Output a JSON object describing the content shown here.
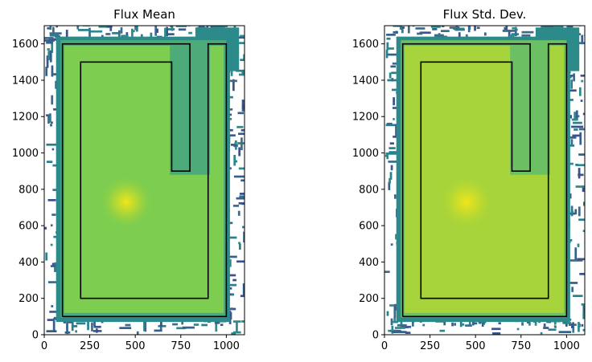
{
  "chart_data": [
    {
      "type": "heatmap",
      "title": "Flux Mean",
      "xlabel": "",
      "ylabel": "",
      "xlim": [
        0,
        1100
      ],
      "ylim": [
        0,
        1700
      ],
      "xticks": [
        0,
        250,
        500,
        750,
        1000
      ],
      "yticks": [
        0,
        200,
        400,
        600,
        800,
        1000,
        1200,
        1400,
        1600
      ],
      "colormap": "viridis",
      "source_point": [
        450,
        730
      ],
      "outer_boundary": [
        [
          100,
          100
        ],
        [
          1000,
          100
        ],
        [
          1000,
          1600
        ],
        [
          900,
          1600
        ],
        [
          900,
          200
        ],
        [
          200,
          200
        ],
        [
          200,
          1500
        ],
        [
          700,
          1500
        ],
        [
          700,
          900
        ],
        [
          800,
          900
        ],
        [
          800,
          1600
        ],
        [
          100,
          1600
        ],
        [
          100,
          100
        ]
      ],
      "notes": "empty bins shown in white"
    },
    {
      "type": "heatmap",
      "title": "Flux Std. Dev.",
      "xlabel": "",
      "ylabel": "",
      "xlim": [
        0,
        1100
      ],
      "ylim": [
        0,
        1700
      ],
      "xticks": [
        0,
        250,
        500,
        750,
        1000
      ],
      "yticks": [
        0,
        200,
        400,
        600,
        800,
        1000,
        1200,
        1400,
        1600
      ],
      "colormap": "viridis",
      "source_point": [
        450,
        730
      ],
      "outer_boundary": [
        [
          100,
          100
        ],
        [
          1000,
          100
        ],
        [
          1000,
          1600
        ],
        [
          900,
          1600
        ],
        [
          900,
          200
        ],
        [
          200,
          200
        ],
        [
          200,
          1500
        ],
        [
          700,
          1500
        ],
        [
          700,
          900
        ],
        [
          800,
          900
        ],
        [
          800,
          1600
        ],
        [
          100,
          1600
        ],
        [
          100,
          100
        ]
      ],
      "notes": "empty bins shown in white"
    }
  ],
  "colors": {
    "interior_mean": "#7ccd50",
    "interior_std": "#a6d43a",
    "edge": "#2d8a8b",
    "outer_scatter": "#35608d",
    "hotspot": "#e6e619",
    "boundary_line": "#000000"
  }
}
